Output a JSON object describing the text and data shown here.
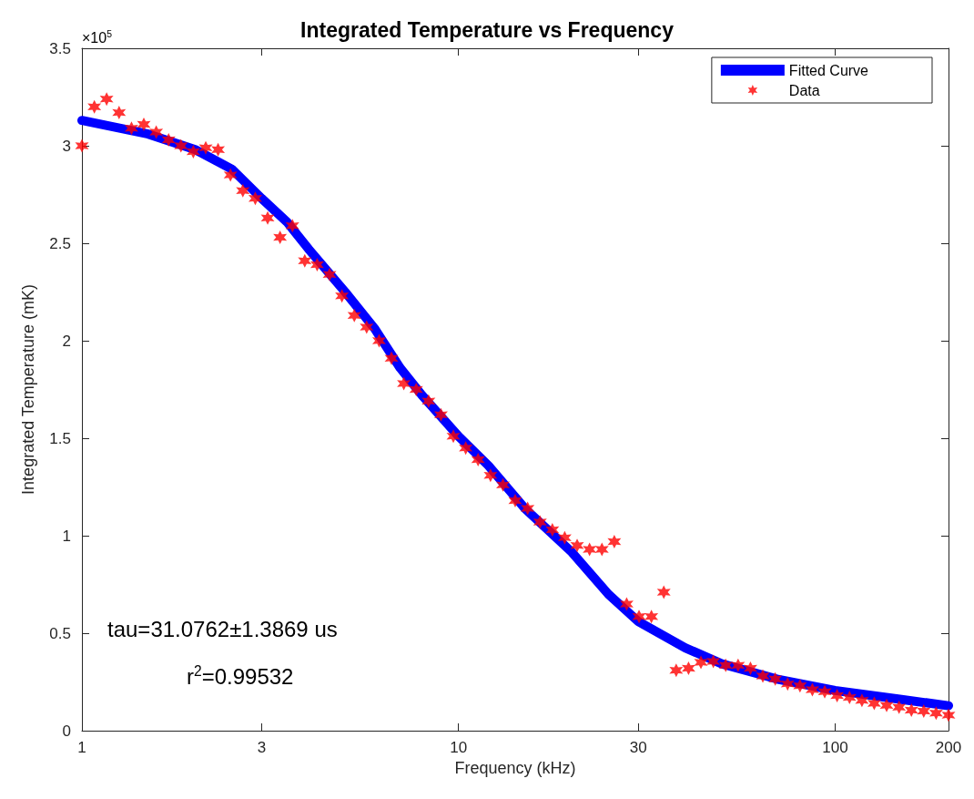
{
  "chart_data": {
    "type": "scatter",
    "title": "Integrated Temperature vs Frequency",
    "xlabel": "Frequency (kHz)",
    "ylabel": "Integrated Temperature (mK)",
    "annotations": [
      "×10$^{5}$",
      "tau=31.0762±1.3869 us",
      "r$^{2}$=0.99532"
    ],
    "log": "x",
    "xlim": [
      1,
      200
    ],
    "xticks": [
      1,
      3,
      10,
      30,
      100,
      200
    ],
    "ylim": [
      0,
      3.5
    ],
    "yticks": [
      0,
      0.5,
      1,
      1.5,
      2,
      2.5,
      3,
      3.5
    ],
    "grid": false,
    "legend": "top right",
    "series": [
      {
        "name": "Fitted Curve",
        "type": "line",
        "color": "#0000ff",
        "marker": "none",
        "line_style": "solid",
        "x": [
          1,
          1.5,
          2,
          2.5,
          3,
          3.5,
          4,
          5,
          6,
          7,
          8,
          10,
          12,
          15,
          20,
          25,
          30,
          40,
          50,
          70,
          100,
          150,
          200
        ],
        "values": [
          3.13,
          3.06,
          2.98,
          2.88,
          2.73,
          2.61,
          2.47,
          2.25,
          2.06,
          1.86,
          1.72,
          1.51,
          1.36,
          1.14,
          0.915,
          0.7,
          0.56,
          0.425,
          0.343,
          0.265,
          0.206,
          0.16,
          0.128
        ]
      },
      {
        "name": "Data",
        "color": "#ff0000",
        "marker": "cross",
        "x": [
          1,
          1.079,
          1.163,
          1.255,
          1.354,
          1.46,
          1.575,
          1.699,
          1.832,
          1.976,
          2.132,
          2.299,
          2.48,
          2.675,
          2.886,
          3.113,
          3.358,
          3.622,
          3.906,
          4.213,
          4.545,
          4.902,
          5.288,
          5.702,
          6.152,
          6.636,
          7.157,
          7.72,
          8.327,
          8.982,
          9.688,
          10.45,
          11.27,
          12.16,
          13.12,
          14.14,
          15.26,
          16.46,
          17.75,
          19.14,
          20.65,
          22.28,
          24.03,
          25.92,
          27.95,
          30.15,
          32.52,
          35.08,
          37.84,
          40.81,
          44.02,
          47.49,
          51.22,
          55.25,
          59.59,
          64.27,
          69.33,
          74.78,
          80.66,
          87.0,
          93.83,
          101.2,
          109.2,
          117.8,
          127.0,
          137.0,
          147.8,
          159.4,
          171.9,
          185.4,
          200
        ],
        "values": [
          3.0,
          3.2,
          3.24,
          3.17,
          3.09,
          3.11,
          3.07,
          3.03,
          3.0,
          2.97,
          2.99,
          2.98,
          2.85,
          2.77,
          2.73,
          2.63,
          2.53,
          2.59,
          2.41,
          2.39,
          2.34,
          2.23,
          2.13,
          2.07,
          2.0,
          1.91,
          1.78,
          1.75,
          1.69,
          1.62,
          1.51,
          1.45,
          1.39,
          1.31,
          1.26,
          1.18,
          1.14,
          1.07,
          1.03,
          0.99,
          0.95,
          0.93,
          0.93,
          0.97,
          0.65,
          0.585,
          0.585,
          0.71,
          0.31,
          0.32,
          0.35,
          0.355,
          0.335,
          0.335,
          0.32,
          0.28,
          0.265,
          0.24,
          0.23,
          0.21,
          0.2,
          0.18,
          0.17,
          0.155,
          0.14,
          0.13,
          0.12,
          0.105,
          0.1,
          0.09,
          0.08
        ]
      }
    ]
  }
}
